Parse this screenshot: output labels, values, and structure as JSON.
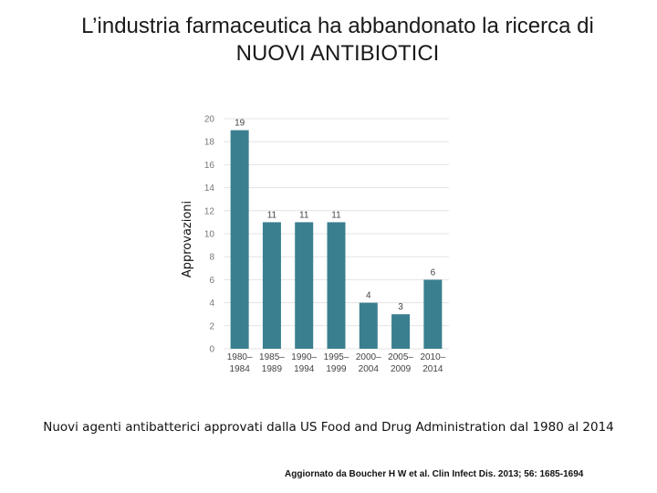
{
  "slide": {
    "title_line1": "L’industria farmaceutica ha abbandonato la ricerca di",
    "title_line2": "NUOVI ANTIBIOTICI",
    "caption": "Nuovi agenti antibatterici approvati dalla US Food and Drug Administration dal 1980 al 2014",
    "source": "Aggiornato da Boucher H W et al. Clin Infect Dis. 2013; 56: 1685-1694"
  },
  "chart_data": {
    "type": "bar",
    "title": "",
    "xlabel": "",
    "ylabel": "Approvazioni",
    "categories": [
      [
        "1980–",
        "1984"
      ],
      [
        "1985–",
        "1989"
      ],
      [
        "1990–",
        "1994"
      ],
      [
        "1995–",
        "1999"
      ],
      [
        "2000–",
        "2004"
      ],
      [
        "2005–",
        "2009"
      ],
      [
        "2010–",
        "2014"
      ]
    ],
    "values": [
      19,
      11,
      11,
      11,
      4,
      3,
      6
    ],
    "ylim": [
      0,
      20
    ],
    "yticks": [
      0,
      2,
      4,
      6,
      8,
      10,
      12,
      14,
      16,
      18,
      20
    ],
    "grid": true,
    "bar_color": "#3a7f8f",
    "grid_color": "#e3e3e3"
  }
}
